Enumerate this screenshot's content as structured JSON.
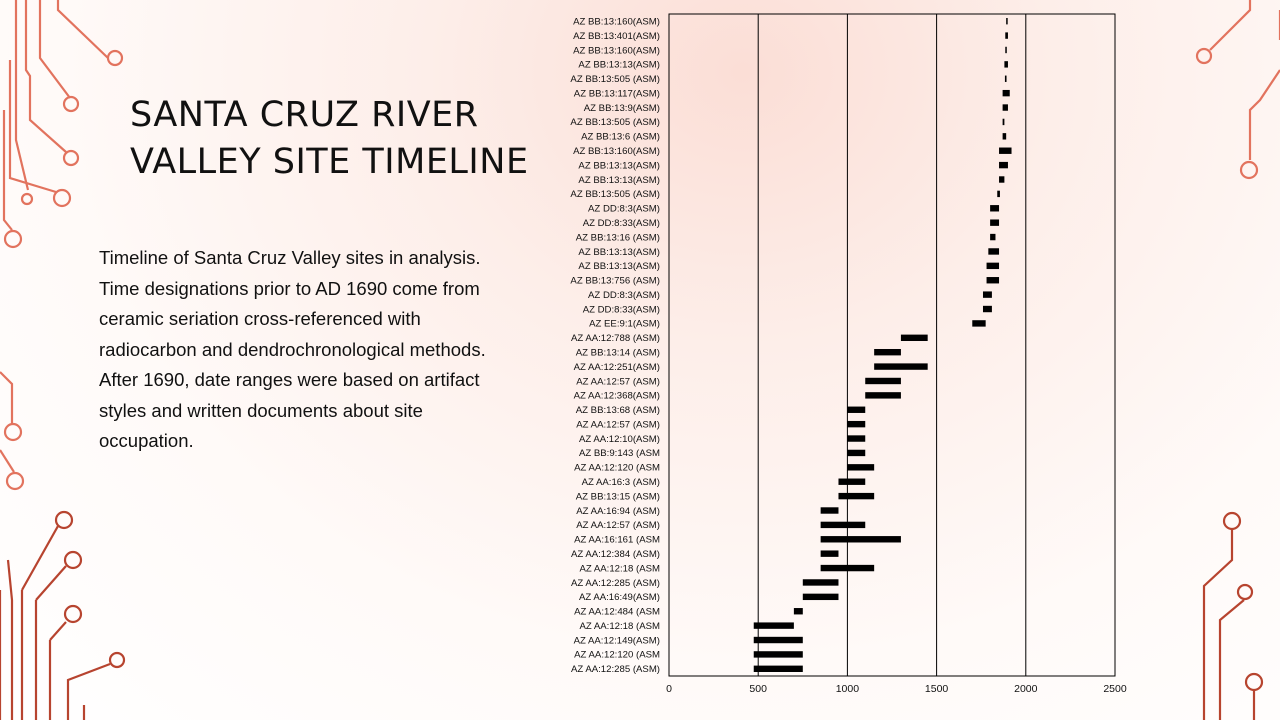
{
  "slide": {
    "title_lines": [
      "SANTA CRUZ RIVER",
      "VALLEY SITE TIMELINE"
    ],
    "body": "Timeline of Santa Cruz Valley sites in analysis. Time designations prior to AD 1690 come from ceramic seriation cross-referenced with radiocarbon and dendrochronological methods. After 1690, date ranges were based on artifact styles and written documents about site occupation.",
    "accent_color": "#e2735e",
    "accent_dark_color": "#b7442f"
  },
  "chart_data": {
    "type": "bar",
    "subtype": "horizontal-range (gantt)",
    "title": "",
    "xlabel": "",
    "ylabel": "",
    "xlim": [
      0,
      2500
    ],
    "xticks": [
      0,
      500,
      1000,
      1500,
      2000,
      2500
    ],
    "vertical_gridlines": [
      500,
      1000,
      1500,
      2000
    ],
    "legend": "none",
    "bar_color": "#000000",
    "sites": [
      {
        "label": "AZ BB:13:160(ASM)",
        "start": 1890,
        "end": 1895
      },
      {
        "label": "AZ BB:13:401(ASM)",
        "start": 1885,
        "end": 1900
      },
      {
        "label": "AZ BB:13:160(ASM)",
        "start": 1885,
        "end": 1893
      },
      {
        "label": "AZ BB:13:13(ASM)",
        "start": 1880,
        "end": 1900
      },
      {
        "label": "AZ BB:13:505 (ASM)",
        "start": 1883,
        "end": 1892
      },
      {
        "label": "AZ BB:13:117(ASM)",
        "start": 1870,
        "end": 1910
      },
      {
        "label": "AZ BB:13:9(ASM)",
        "start": 1870,
        "end": 1900
      },
      {
        "label": "AZ BB:13:505 (ASM)",
        "start": 1870,
        "end": 1880
      },
      {
        "label": "AZ BB:13:6 (ASM)",
        "start": 1870,
        "end": 1890
      },
      {
        "label": "AZ BB:13:160(ASM)",
        "start": 1850,
        "end": 1920
      },
      {
        "label": "AZ BB:13:13(ASM)",
        "start": 1850,
        "end": 1900
      },
      {
        "label": "AZ BB:13:13(ASM)",
        "start": 1850,
        "end": 1880
      },
      {
        "label": "AZ BB:13:505 (ASM)",
        "start": 1840,
        "end": 1855
      },
      {
        "label": "AZ DD:8:3(ASM)",
        "start": 1800,
        "end": 1850
      },
      {
        "label": "AZ DD:8:33(ASM)",
        "start": 1800,
        "end": 1850
      },
      {
        "label": "AZ BB:13:16 (ASM)",
        "start": 1800,
        "end": 1830
      },
      {
        "label": "AZ BB:13:13(ASM)",
        "start": 1790,
        "end": 1850
      },
      {
        "label": "AZ BB:13:13(ASM)",
        "start": 1780,
        "end": 1850
      },
      {
        "label": "AZ BB:13:756 (ASM)",
        "start": 1780,
        "end": 1850
      },
      {
        "label": "AZ DD:8:3(ASM)",
        "start": 1760,
        "end": 1810
      },
      {
        "label": "AZ DD:8:33(ASM)",
        "start": 1760,
        "end": 1810
      },
      {
        "label": "AZ EE:9:1(ASM)",
        "start": 1700,
        "end": 1775
      },
      {
        "label": "AZ AA:12:788 (ASM)",
        "start": 1300,
        "end": 1450
      },
      {
        "label": "AZ BB:13:14 (ASM)",
        "start": 1150,
        "end": 1300
      },
      {
        "label": "AZ AA:12:251(ASM)",
        "start": 1150,
        "end": 1450
      },
      {
        "label": "AZ AA:12:57 (ASM)",
        "start": 1100,
        "end": 1300
      },
      {
        "label": "AZ AA:12:368(ASM)",
        "start": 1100,
        "end": 1300
      },
      {
        "label": "AZ BB:13:68 (ASM)",
        "start": 1000,
        "end": 1100
      },
      {
        "label": "AZ AA:12:57 (ASM)",
        "start": 1000,
        "end": 1100
      },
      {
        "label": "AZ AA:12:10(ASM)",
        "start": 1000,
        "end": 1100
      },
      {
        "label": "AZ BB:9:143 (ASM",
        "start": 1000,
        "end": 1100
      },
      {
        "label": "AZ AA:12:120 (ASM",
        "start": 1000,
        "end": 1150
      },
      {
        "label": "AZ AA:16:3 (ASM)",
        "start": 950,
        "end": 1100
      },
      {
        "label": "AZ BB:13:15 (ASM)",
        "start": 950,
        "end": 1150
      },
      {
        "label": "AZ AA:16:94 (ASM)",
        "start": 850,
        "end": 950
      },
      {
        "label": "AZ AA:12:57 (ASM)",
        "start": 850,
        "end": 1100
      },
      {
        "label": "AZ AA:16:161 (ASM",
        "start": 850,
        "end": 1300
      },
      {
        "label": "AZ AA:12:384 (ASM)",
        "start": 850,
        "end": 950
      },
      {
        "label": "AZ AA:12:18 (ASM",
        "start": 850,
        "end": 1150
      },
      {
        "label": "AZ AA:12:285 (ASM)",
        "start": 750,
        "end": 950
      },
      {
        "label": "AZ AA:16:49(ASM)",
        "start": 750,
        "end": 950
      },
      {
        "label": "AZ AA:12:484 (ASM",
        "start": 700,
        "end": 750
      },
      {
        "label": "AZ AA:12:18 (ASM",
        "start": 475,
        "end": 700
      },
      {
        "label": "AZ AA:12:149(ASM)",
        "start": 475,
        "end": 750
      },
      {
        "label": "AZ AA:12:120 (ASM",
        "start": 475,
        "end": 750
      },
      {
        "label": "AZ AA:12:285 (ASM)",
        "start": 475,
        "end": 750
      }
    ]
  }
}
